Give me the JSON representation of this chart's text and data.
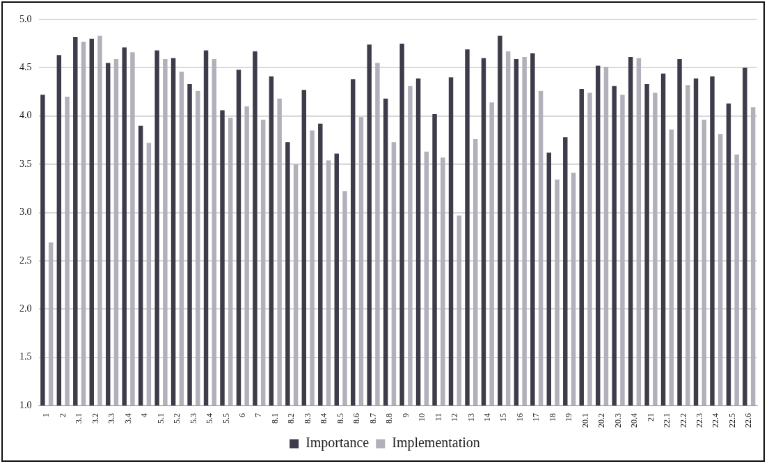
{
  "chart_data": {
    "type": "bar",
    "categories": [
      "1",
      "2",
      "3.1",
      "3.2",
      "3.3",
      "3.4",
      "4",
      "5.1",
      "5.2",
      "5.3",
      "5.4",
      "5.5",
      "6",
      "7",
      "8.1",
      "8.2",
      "8.3",
      "8.4",
      "8.5",
      "8.6",
      "8.7",
      "8.8",
      "9",
      "10",
      "11",
      "12",
      "13",
      "14",
      "15",
      "16",
      "17",
      "18",
      "19",
      "20.1",
      "20.2",
      "20.3",
      "20.4",
      "21",
      "22.1",
      "22.2",
      "22.3",
      "22.4",
      "22.5",
      "22.6"
    ],
    "series": [
      {
        "name": "Importance",
        "color": "#3d3c4a",
        "values": [
          4.22,
          4.63,
          4.82,
          4.8,
          4.55,
          4.71,
          3.9,
          4.68,
          4.6,
          4.33,
          4.68,
          4.06,
          4.48,
          4.67,
          4.41,
          3.73,
          4.27,
          3.92,
          3.61,
          4.38,
          4.74,
          4.18,
          4.75,
          4.39,
          4.02,
          4.4,
          4.69,
          4.6,
          4.83,
          4.59,
          4.65,
          3.62,
          3.78,
          4.28,
          4.52,
          4.31,
          4.61,
          4.33,
          4.44,
          4.59,
          4.39,
          4.41,
          4.13,
          4.5
        ]
      },
      {
        "name": "Implementation",
        "color": "#b1b0bb",
        "values": [
          2.69,
          4.2,
          4.77,
          4.83,
          4.59,
          4.66,
          3.72,
          4.59,
          4.46,
          4.26,
          4.59,
          3.98,
          4.1,
          3.96,
          4.18,
          3.5,
          3.85,
          3.54,
          3.22,
          3.99,
          4.55,
          3.73,
          4.31,
          3.63,
          3.57,
          2.97,
          3.76,
          4.14,
          4.67,
          4.61,
          4.26,
          3.34,
          3.41,
          4.24,
          4.51,
          4.22,
          4.6,
          4.24,
          3.86,
          4.32,
          3.96,
          3.81,
          3.6,
          4.09
        ]
      }
    ],
    "ylim": [
      1.0,
      5.0
    ],
    "yticks": [
      {
        "value": 1,
        "label": "1.0"
      },
      {
        "value": 1.5,
        "label": "1.5"
      },
      {
        "value": 2,
        "label": "2.0"
      },
      {
        "value": 2.5,
        "label": "2.5"
      },
      {
        "value": 3,
        "label": "3.0"
      },
      {
        "value": 3.5,
        "label": "3.5"
      },
      {
        "value": 4,
        "label": "4.0"
      },
      {
        "value": 4.5,
        "label": "4.5"
      },
      {
        "value": 5,
        "label": "5.0"
      }
    ],
    "grid": "y",
    "legend": "bottom"
  }
}
